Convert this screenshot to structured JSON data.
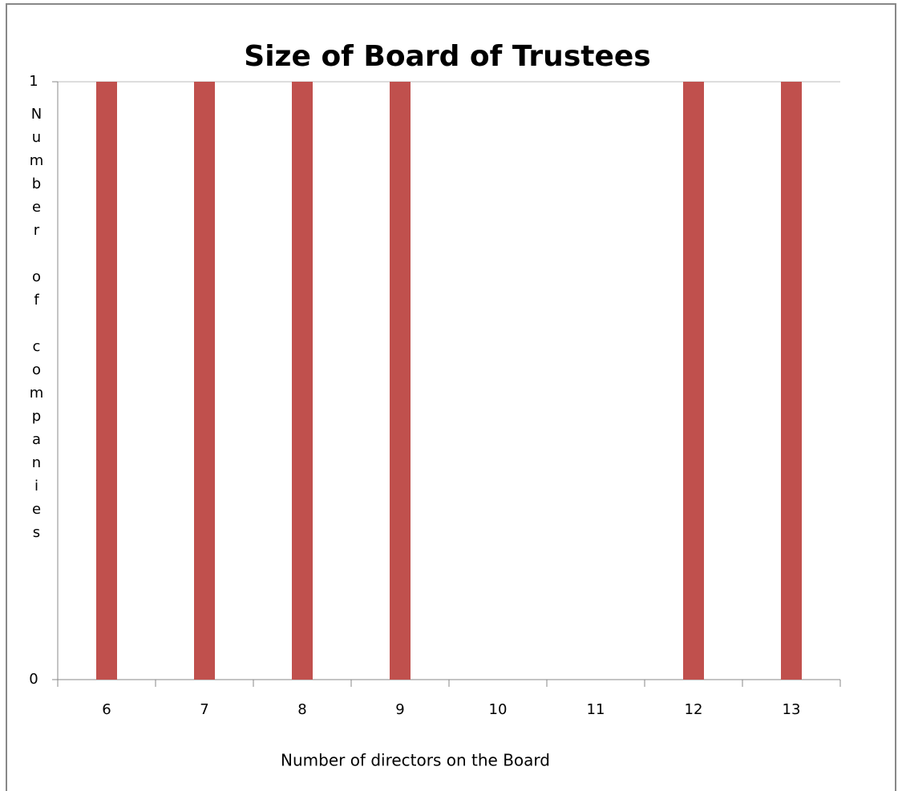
{
  "chart_data": {
    "type": "bar",
    "title": "Size of Board of Trustees",
    "x_label": "Number of directors on the Board",
    "y_label": "Number of companies",
    "categories": [
      "6",
      "7",
      "8",
      "9",
      "10",
      "11",
      "12",
      "13"
    ],
    "values": [
      1,
      1,
      1,
      1,
      0,
      0,
      1,
      1
    ],
    "color": "#c0504d",
    "ylim": [
      0,
      1
    ],
    "yticks": [
      0,
      1
    ],
    "grid": true
  }
}
